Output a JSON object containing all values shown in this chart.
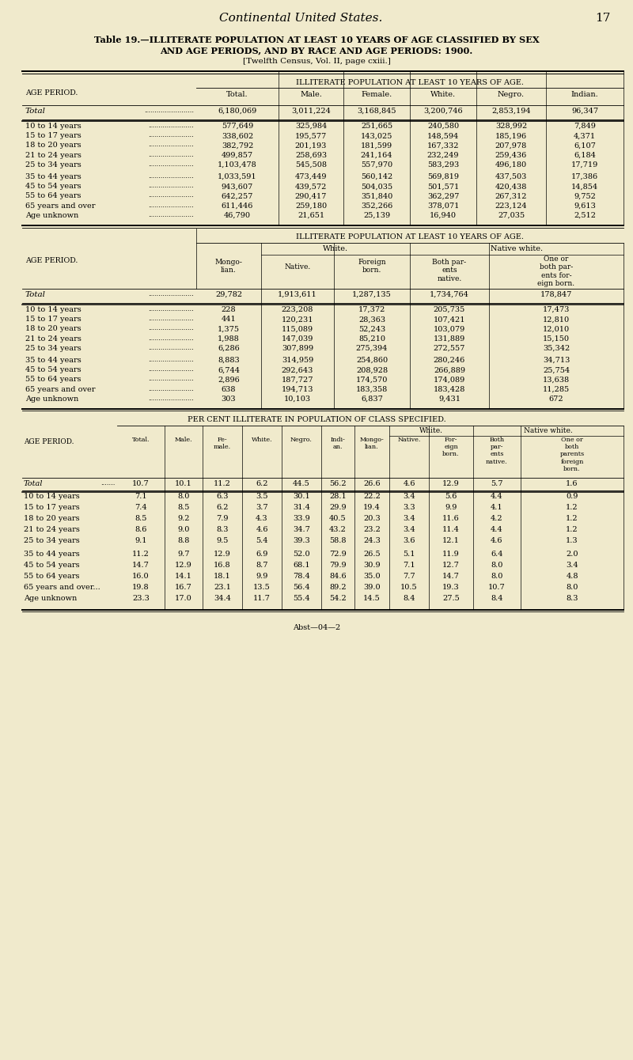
{
  "bg_color": "#f0eacc",
  "title_italic": "Continental United States.",
  "page_number": "17",
  "table_title_line1": "Table 19.—ILLITERATE POPULATION AT LEAST 10 YEARS OF AGE CLASSIFIED BY SEX",
  "table_title_line2": "AND AGE PERIODS, AND BY RACE AND AGE PERIODS: 1900.",
  "table_subtitle": "[Twelfth Census, Vol. II, page cxiii.]",
  "section1_header": "ILLITERATE POPULATION AT LEAST 10 YEARS OF AGE.",
  "section1_col_headers": [
    "Total.",
    "Male.",
    "Female.",
    "White.",
    "Negro.",
    "Indian."
  ],
  "section1_row_labels": [
    "Total",
    "10 to 14 years",
    "15 to 17 years",
    "18 to 20 years",
    "21 to 24 years",
    "25 to 34 years",
    "35 to 44 years",
    "45 to 54 years",
    "55 to 64 years",
    "65 years and over",
    "Age unknown"
  ],
  "section1_data": [
    [
      "6,180,069",
      "3,011,224",
      "3,168,845",
      "3,200,746",
      "2,853,194",
      "96,347"
    ],
    [
      "577,649",
      "325,984",
      "251,665",
      "240,580",
      "328,992",
      "7,849"
    ],
    [
      "338,602",
      "195,577",
      "143,025",
      "148,594",
      "185,196",
      "4,371"
    ],
    [
      "382,792",
      "201,193",
      "181,599",
      "167,332",
      "207,978",
      "6,107"
    ],
    [
      "499,857",
      "258,693",
      "241,164",
      "232,249",
      "259,436",
      "6,184"
    ],
    [
      "1,103,478",
      "545,508",
      "557,970",
      "583,293",
      "496,180",
      "17,719"
    ],
    [
      "1,033,591",
      "473,449",
      "560,142",
      "569,819",
      "437,503",
      "17,386"
    ],
    [
      "943,607",
      "439,572",
      "504,035",
      "501,571",
      "420,438",
      "14,854"
    ],
    [
      "642,257",
      "290,417",
      "351,840",
      "362,297",
      "267,312",
      "9,752"
    ],
    [
      "611,446",
      "259,180",
      "352,266",
      "378,071",
      "223,124",
      "9,613"
    ],
    [
      "46,790",
      "21,651",
      "25,139",
      "16,940",
      "27,035",
      "2,512"
    ]
  ],
  "section2_header": "ILLITERATE POPULATION AT LEAST 10 YEARS OF AGE.",
  "section2_col_headers": [
    "Mongo-\nlian.",
    "Native.",
    "Foreign\nborn.",
    "Both par-\nents\nnative.",
    "One or\nboth par-\nents for-\neign born."
  ],
  "section2_row_labels": [
    "Total",
    "10 to 14 years",
    "15 to 17 years",
    "18 to 20 years",
    "21 to 24 years",
    "25 to 34 years",
    "35 to 44 years",
    "45 to 54 years",
    "55 to 64 years",
    "65 years and over",
    "Age unknown"
  ],
  "section2_data": [
    [
      "29,782",
      "1,913,611",
      "1,287,135",
      "1,734,764",
      "178,847"
    ],
    [
      "228",
      "223,208",
      "17,372",
      "205,735",
      "17,473"
    ],
    [
      "441",
      "120,231",
      "28,363",
      "107,421",
      "12,810"
    ],
    [
      "1,375",
      "115,089",
      "52,243",
      "103,079",
      "12,010"
    ],
    [
      "1,988",
      "147,039",
      "85,210",
      "131,889",
      "15,150"
    ],
    [
      "6,286",
      "307,899",
      "275,394",
      "272,557",
      "35,342"
    ],
    [
      "8,883",
      "314,959",
      "254,860",
      "280,246",
      "34,713"
    ],
    [
      "6,744",
      "292,643",
      "208,928",
      "266,889",
      "25,754"
    ],
    [
      "2,896",
      "187,727",
      "174,570",
      "174,089",
      "13,638"
    ],
    [
      "638",
      "194,713",
      "183,358",
      "183,428",
      "11,285"
    ],
    [
      "303",
      "10,103",
      "6,837",
      "9,431",
      "672"
    ]
  ],
  "section3_header": "PER CENT ILLITERATE IN POPULATION OF CLASS SPECIFIED.",
  "section3_col_headers": [
    "Total.",
    "Male.",
    "Fe-\nmale.",
    "White.",
    "Negro.",
    "Indi-\nan.",
    "Mongo-\nlian.",
    "Native.",
    "For-\neign\nborn.",
    "Both\npar-\nents\nnative.",
    "One or\nboth\nparents\nforeign\nborn."
  ],
  "section3_row_labels": [
    "Total",
    "10 to 14 years",
    "15 to 17 years",
    "18 to 20 years",
    "21 to 24 years",
    "25 to 34 years",
    "35 to 44 years",
    "45 to 54 years",
    "55 to 64 years",
    "65 years and over...",
    "Age unknown"
  ],
  "section3_data": [
    [
      "10.7",
      "10.1",
      "11.2",
      "6.2",
      "44.5",
      "56.2",
      "26.6",
      "4.6",
      "12.9",
      "5.7",
      "1.6"
    ],
    [
      "7.1",
      "8.0",
      "6.3",
      "3.5",
      "30.1",
      "28.1",
      "22.2",
      "3.4",
      "5.6",
      "4.4",
      "0.9"
    ],
    [
      "7.4",
      "8.5",
      "6.2",
      "3.7",
      "31.4",
      "29.9",
      "19.4",
      "3.3",
      "9.9",
      "4.1",
      "1.2"
    ],
    [
      "8.5",
      "9.2",
      "7.9",
      "4.3",
      "33.9",
      "40.5",
      "20.3",
      "3.4",
      "11.6",
      "4.2",
      "1.2"
    ],
    [
      "8.6",
      "9.0",
      "8.3",
      "4.6",
      "34.7",
      "43.2",
      "23.2",
      "3.4",
      "11.4",
      "4.4",
      "1.2"
    ],
    [
      "9.1",
      "8.8",
      "9.5",
      "5.4",
      "39.3",
      "58.8",
      "24.3",
      "3.6",
      "12.1",
      "4.6",
      "1.3"
    ],
    [
      "11.2",
      "9.7",
      "12.9",
      "6.9",
      "52.0",
      "72.9",
      "26.5",
      "5.1",
      "11.9",
      "6.4",
      "2.0"
    ],
    [
      "14.7",
      "12.9",
      "16.8",
      "8.7",
      "68.1",
      "79.9",
      "30.9",
      "7.1",
      "12.7",
      "8.0",
      "3.4"
    ],
    [
      "16.0",
      "14.1",
      "18.1",
      "9.9",
      "78.4",
      "84.6",
      "35.0",
      "7.7",
      "14.7",
      "8.0",
      "4.8"
    ],
    [
      "19.8",
      "16.7",
      "23.1",
      "13.5",
      "56.4",
      "89.2",
      "39.0",
      "10.5",
      "19.3",
      "10.7",
      "8.0"
    ],
    [
      "23.3",
      "17.0",
      "34.4",
      "11.7",
      "55.4",
      "54.2",
      "14.5",
      "8.4",
      "27.5",
      "8.4",
      "8.3"
    ]
  ],
  "footer": "Abst—04—2"
}
